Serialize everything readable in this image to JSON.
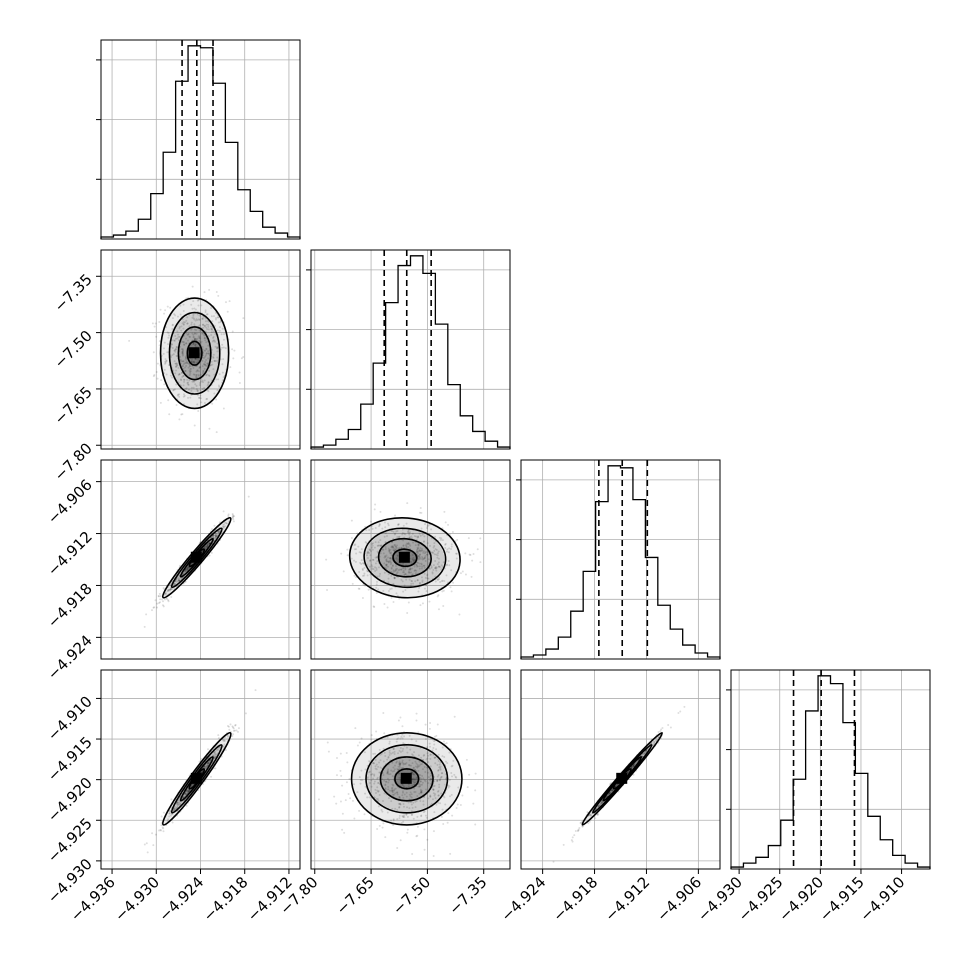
{
  "chart_data": {
    "type": "corner",
    "grid": true,
    "params": [
      {
        "range": [
          -4.9375,
          -4.9105
        ],
        "ticks": [
          -4.936,
          -4.93,
          -4.924,
          -4.918,
          -4.912
        ],
        "tick_labels": [
          "−4.936",
          "−4.930",
          "−4.924",
          "−4.918",
          "−4.912"
        ],
        "quantiles": [
          -4.9265,
          -4.9245,
          -4.9223
        ],
        "hist_counts": [
          1,
          2,
          4,
          10,
          23,
          44,
          80,
          98,
          97,
          79,
          49,
          25,
          14,
          6,
          3,
          1
        ]
      },
      {
        "range": [
          -7.81,
          -7.28
        ],
        "ticks": [
          -7.8,
          -7.65,
          -7.5,
          -7.35
        ],
        "tick_labels": [
          "−7.80",
          "−7.65",
          "−7.50",
          "−7.35"
        ],
        "quantiles": [
          -7.615,
          -7.555,
          -7.49
        ],
        "hist_counts": [
          1,
          2,
          5,
          10,
          23,
          44,
          75,
          94,
          99,
          90,
          64,
          33,
          17,
          9,
          4,
          1
        ]
      },
      {
        "range": [
          -4.9265,
          -4.9035
        ],
        "ticks": [
          -4.924,
          -4.918,
          -4.912,
          -4.906
        ],
        "tick_labels": [
          "−4.924",
          "−4.918",
          "−4.912",
          "−4.906"
        ],
        "quantiles": [
          -4.9175,
          -4.9148,
          -4.9119
        ],
        "hist_counts": [
          1,
          2,
          5,
          11,
          24,
          44,
          79,
          97,
          96,
          80,
          51,
          27,
          15,
          7,
          3,
          1
        ]
      },
      {
        "range": [
          -4.931,
          -4.9065
        ],
        "ticks": [
          -4.93,
          -4.925,
          -4.92,
          -4.915,
          -4.91
        ],
        "tick_labels": [
          "−4.930",
          "−4.925",
          "−4.920",
          "−4.915",
          "−4.910"
        ],
        "quantiles": [
          -4.9233,
          -4.9199,
          -4.9158
        ],
        "hist_counts": [
          1,
          3,
          6,
          12,
          25,
          46,
          81,
          99,
          95,
          75,
          49,
          27,
          15,
          7,
          3,
          1
        ]
      }
    ],
    "pairs": [
      {
        "x": 0,
        "y": 1,
        "mean": [
          -4.9248,
          -7.555
        ],
        "sd": [
          0.0022,
          0.07
        ],
        "rho": 0.0
      },
      {
        "x": 0,
        "y": 2,
        "mean": [
          -4.9245,
          -4.9148
        ],
        "sd": [
          0.0022,
          0.0022
        ],
        "rho": 0.97
      },
      {
        "x": 1,
        "y": 2,
        "mean": [
          -7.56,
          -4.9148
        ],
        "sd": [
          0.07,
          0.0022
        ],
        "rho": -0.05
      },
      {
        "x": 0,
        "y": 3,
        "mean": [
          -4.9245,
          -4.9199
        ],
        "sd": [
          0.0022,
          0.0027
        ],
        "rho": 0.97
      },
      {
        "x": 1,
        "y": 3,
        "mean": [
          -7.555,
          -4.9199
        ],
        "sd": [
          0.07,
          0.0027
        ],
        "rho": 0.0
      },
      {
        "x": 2,
        "y": 3,
        "mean": [
          -4.9148,
          -4.9199
        ],
        "sd": [
          0.0022,
          0.0027
        ],
        "rho": 0.99
      }
    ]
  }
}
